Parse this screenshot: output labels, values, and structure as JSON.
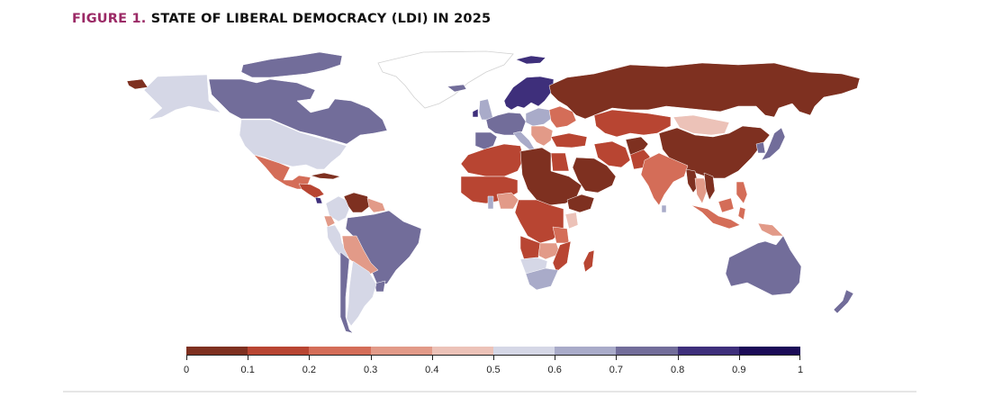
{
  "figure": {
    "label": "FIGURE 1.",
    "title": "STATE OF LIBERAL DEMOCRACY (LDI) IN 2025",
    "label_color": "#9b2a66"
  },
  "chart_data": {
    "type": "choropleth",
    "title": "State of Liberal Democracy (LDI) in 2025",
    "metric": "Liberal Democracy Index (LDI)",
    "year": 2025,
    "scale": {
      "min": 0,
      "max": 1,
      "tick_labels": [
        "0",
        "0.1",
        "0.2",
        "0.3",
        "0.4",
        "0.5",
        "0.6",
        "0.7",
        "0.8",
        "0.9",
        "1"
      ],
      "bins": [
        {
          "range": [
            0.0,
            0.1
          ],
          "color": "#7e3020"
        },
        {
          "range": [
            0.1,
            0.2
          ],
          "color": "#b84532"
        },
        {
          "range": [
            0.2,
            0.3
          ],
          "color": "#d46d58"
        },
        {
          "range": [
            0.3,
            0.4
          ],
          "color": "#e29a88"
        },
        {
          "range": [
            0.4,
            0.5
          ],
          "color": "#ecc2b8"
        },
        {
          "range": [
            0.5,
            0.6
          ],
          "color": "#d5d7e6"
        },
        {
          "range": [
            0.6,
            0.7
          ],
          "color": "#a9abc9"
        },
        {
          "range": [
            0.7,
            0.8
          ],
          "color": "#726d9a"
        },
        {
          "range": [
            0.8,
            0.9
          ],
          "color": "#3e2f7b"
        },
        {
          "range": [
            0.9,
            1.0
          ],
          "color": "#1b0b57"
        }
      ],
      "legend_position": "bottom-center"
    },
    "no_data_color": "#ffffff",
    "regions": [
      {
        "name": "Greenland",
        "bin": null
      },
      {
        "name": "Alaska / United States",
        "bin": 5
      },
      {
        "name": "Canada",
        "bin": 7
      },
      {
        "name": "Canadian Arctic Islands",
        "bin": 7
      },
      {
        "name": "United States",
        "bin": 5
      },
      {
        "name": "Mexico",
        "bin": 2
      },
      {
        "name": "Central America (north)",
        "bin": 1
      },
      {
        "name": "Costa Rica",
        "bin": 8
      },
      {
        "name": "Cuba",
        "bin": 0
      },
      {
        "name": "Venezuela",
        "bin": 0
      },
      {
        "name": "Colombia",
        "bin": 5
      },
      {
        "name": "Ecuador",
        "bin": 3
      },
      {
        "name": "Peru",
        "bin": 5
      },
      {
        "name": "Guyana / Suriname",
        "bin": 3
      },
      {
        "name": "Brazil",
        "bin": 7
      },
      {
        "name": "Bolivia / Paraguay",
        "bin": 3
      },
      {
        "name": "Uruguay",
        "bin": 7
      },
      {
        "name": "Argentina",
        "bin": 5
      },
      {
        "name": "Chile",
        "bin": 7
      },
      {
        "name": "Iceland",
        "bin": 7
      },
      {
        "name": "Ireland",
        "bin": 8
      },
      {
        "name": "United Kingdom",
        "bin": 6
      },
      {
        "name": "Nordic countries",
        "bin": 8
      },
      {
        "name": "Western Europe",
        "bin": 7
      },
      {
        "name": "Iberia",
        "bin": 7
      },
      {
        "name": "Central Europe",
        "bin": 6
      },
      {
        "name": "Italy",
        "bin": 6
      },
      {
        "name": "Balkans",
        "bin": 3
      },
      {
        "name": "Eastern Europe",
        "bin": 2
      },
      {
        "name": "Russia",
        "bin": 0
      },
      {
        "name": "Kazakhstan / Central Asia",
        "bin": 1
      },
      {
        "name": "Mongolia",
        "bin": 4
      },
      {
        "name": "China",
        "bin": 0
      },
      {
        "name": "Korea (South)",
        "bin": 7
      },
      {
        "name": "Japan",
        "bin": 7
      },
      {
        "name": "Turkey",
        "bin": 1
      },
      {
        "name": "Iran",
        "bin": 1
      },
      {
        "name": "Afghanistan",
        "bin": 0
      },
      {
        "name": "Pakistan",
        "bin": 1
      },
      {
        "name": "India",
        "bin": 2
      },
      {
        "name": "Sri Lanka",
        "bin": 6
      },
      {
        "name": "Arabian Peninsula",
        "bin": 0
      },
      {
        "name": "Myanmar",
        "bin": 0
      },
      {
        "name": "Thailand / Indochina",
        "bin": 3
      },
      {
        "name": "Vietnam / Laos",
        "bin": 0
      },
      {
        "name": "Philippines",
        "bin": 2
      },
      {
        "name": "Indonesia",
        "bin": 2
      },
      {
        "name": "Papua New Guinea",
        "bin": 3
      },
      {
        "name": "Australia",
        "bin": 7
      },
      {
        "name": "New Zealand",
        "bin": 7
      },
      {
        "name": "North Africa (west)",
        "bin": 1
      },
      {
        "name": "Libya / Sudan / Chad",
        "bin": 0
      },
      {
        "name": "Egypt",
        "bin": 1
      },
      {
        "name": "West Africa",
        "bin": 1
      },
      {
        "name": "Ghana",
        "bin": 6
      },
      {
        "name": "Nigeria",
        "bin": 3
      },
      {
        "name": "Ethiopia",
        "bin": 0
      },
      {
        "name": "Kenya",
        "bin": 4
      },
      {
        "name": "Central Africa",
        "bin": 1
      },
      {
        "name": "Tanzania",
        "bin": 2
      },
      {
        "name": "Angola",
        "bin": 1
      },
      {
        "name": "Zambia / Malawi",
        "bin": 3
      },
      {
        "name": "Mozambique",
        "bin": 1
      },
      {
        "name": "Namibia / Botswana",
        "bin": 5
      },
      {
        "name": "South Africa",
        "bin": 6
      },
      {
        "name": "Madagascar",
        "bin": 1
      }
    ]
  }
}
